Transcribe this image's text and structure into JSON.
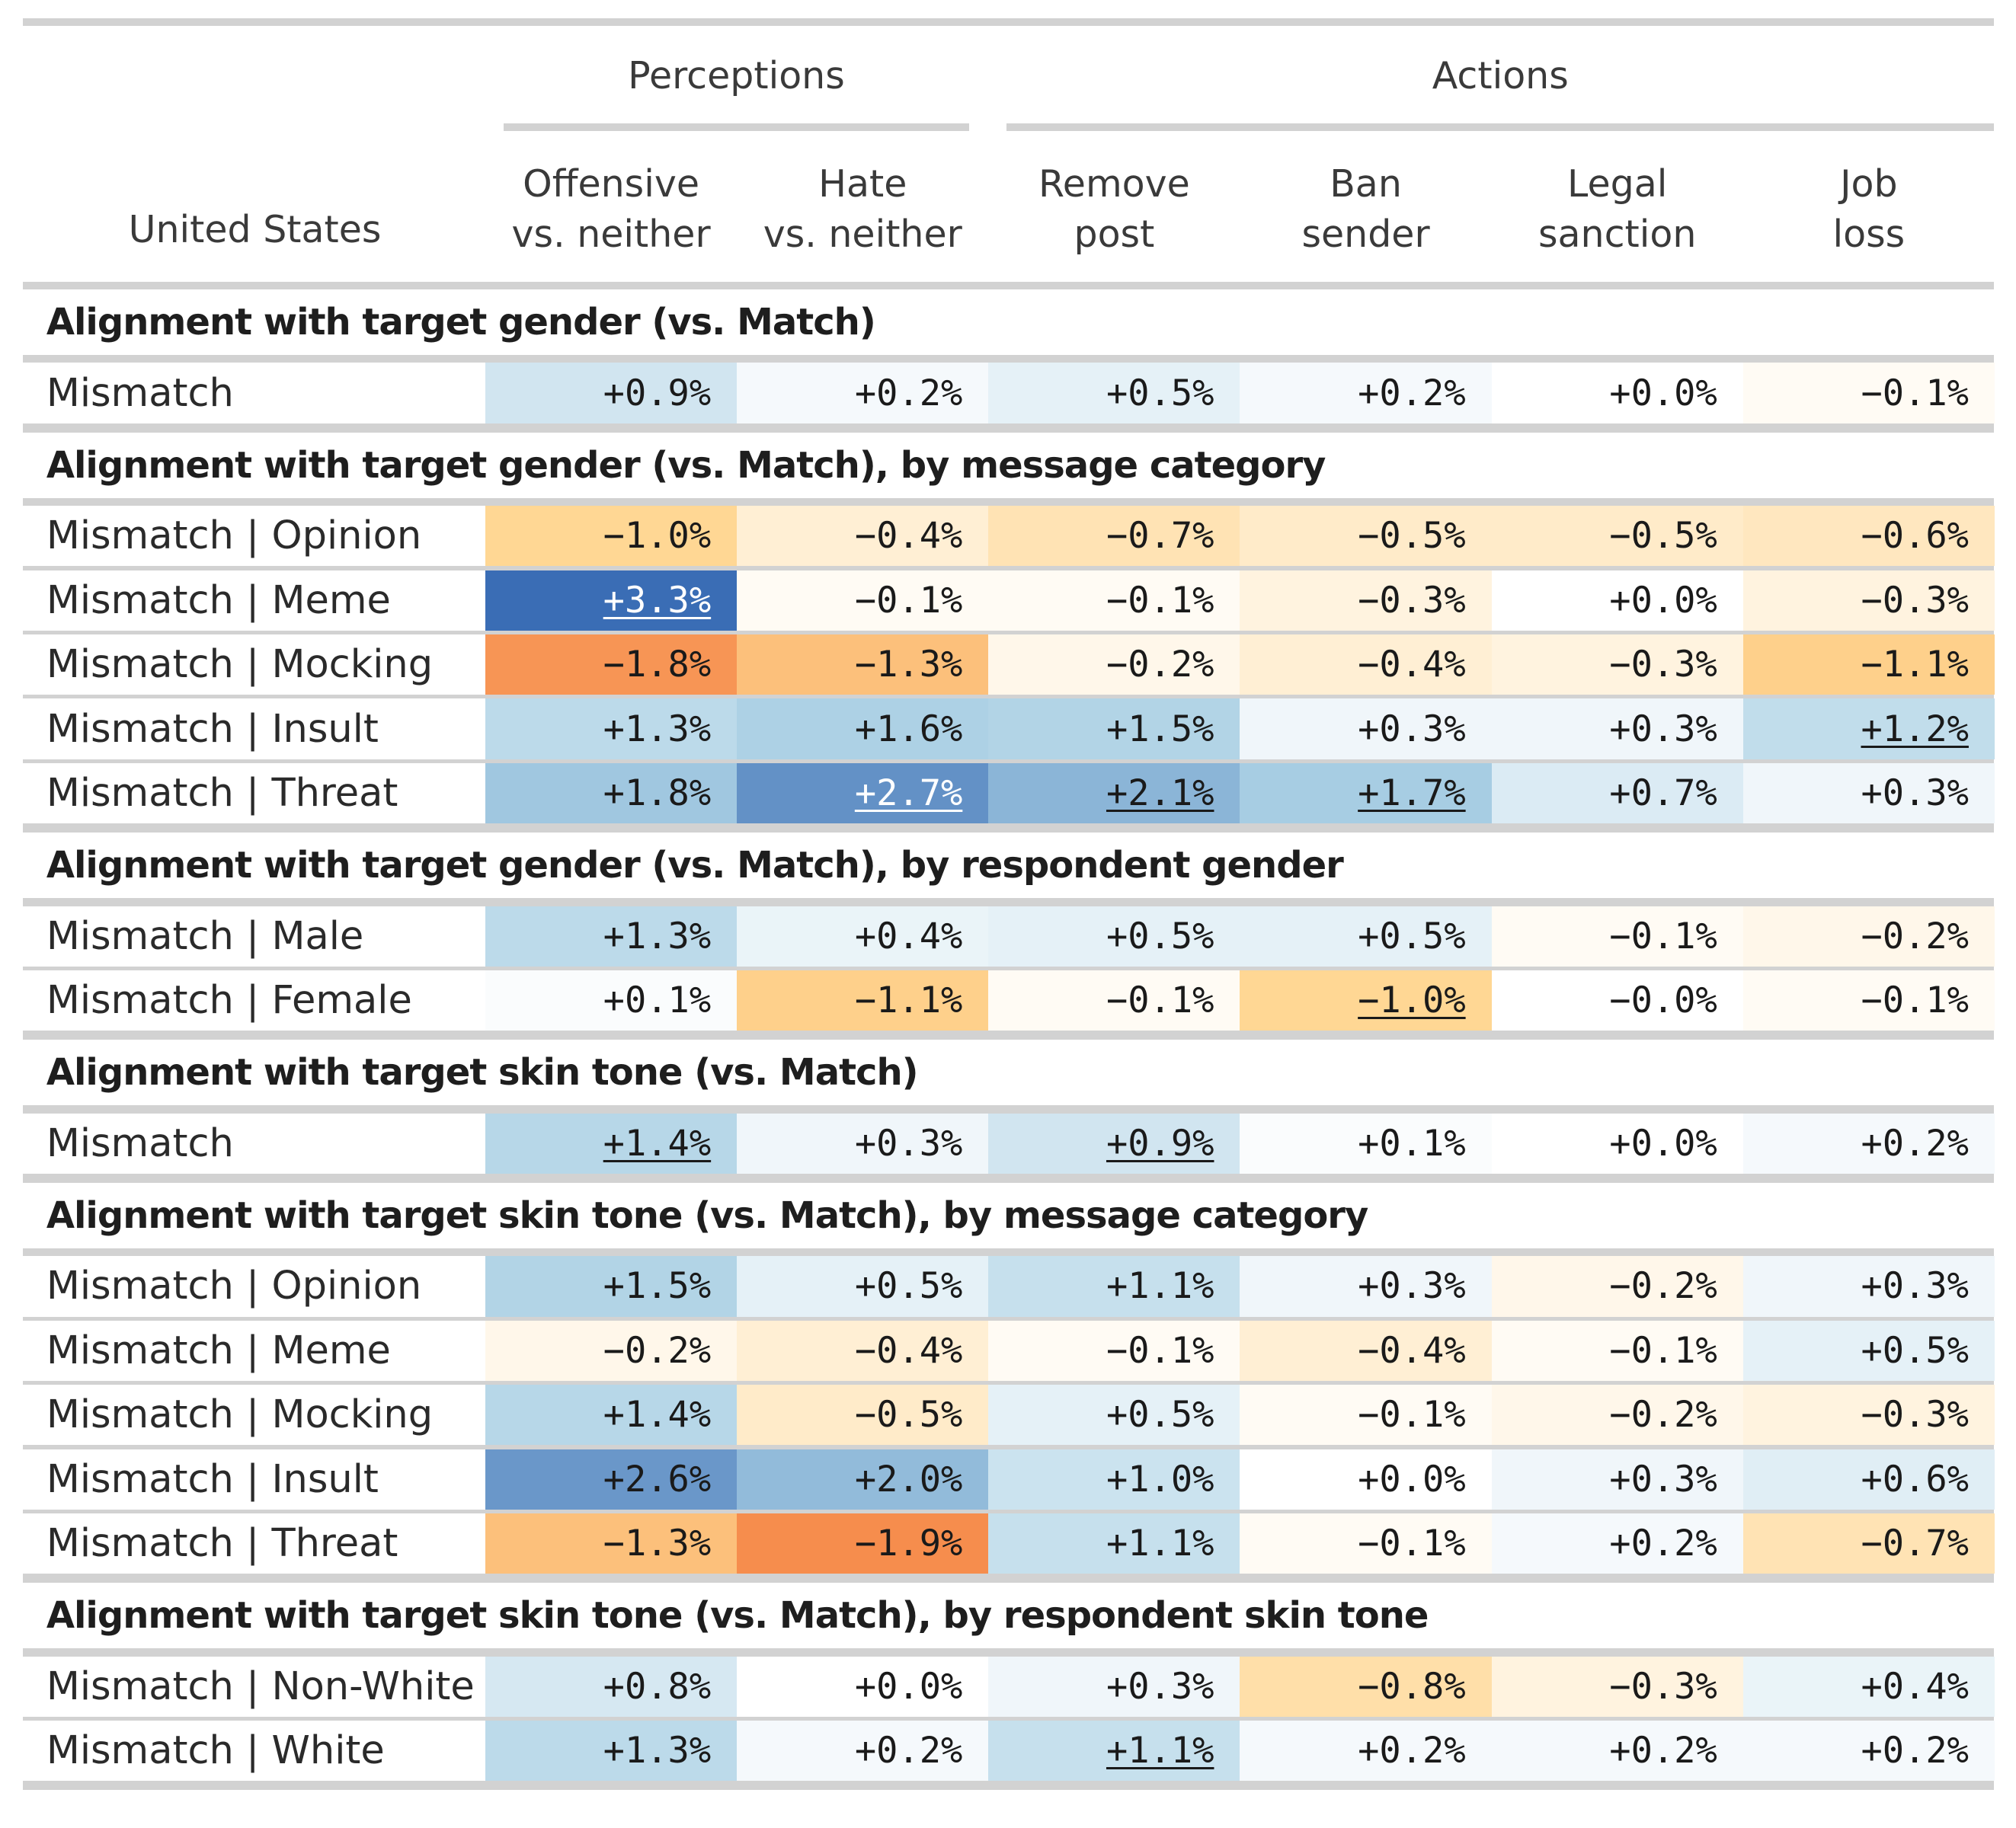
{
  "chart_data": {
    "type": "table",
    "title": "",
    "stub_header": "United States",
    "spanners": [
      {
        "label": "Perceptions",
        "columns": [
          0,
          1
        ]
      },
      {
        "label": "Actions",
        "columns": [
          2,
          3,
          4,
          5
        ]
      }
    ],
    "columns": [
      "Offensive\nvs. neither",
      "Hate\nvs. neither",
      "Remove\npost",
      "Ban\nsender",
      "Legal\nsanction",
      "Job\nloss"
    ],
    "groups": [
      {
        "title": "Alignment with target gender (vs. Match)",
        "rows": [
          {
            "label": "Mismatch",
            "values": [
              0.9,
              0.2,
              0.5,
              0.2,
              0.0,
              -0.1
            ],
            "text": [
              "+0.9%",
              "+0.2%",
              "+0.5%",
              "+0.2%",
              "+0.0%",
              "−0.1%"
            ],
            "underlined": [
              false,
              false,
              false,
              false,
              false,
              false
            ]
          }
        ]
      },
      {
        "title": "Alignment with target gender (vs. Match), by message category",
        "rows": [
          {
            "label": "Mismatch | Opinion",
            "values": [
              -1.0,
              -0.4,
              -0.7,
              -0.5,
              -0.5,
              -0.6
            ],
            "text": [
              "−1.0%",
              "−0.4%",
              "−0.7%",
              "−0.5%",
              "−0.5%",
              "−0.6%"
            ],
            "underlined": [
              false,
              false,
              false,
              false,
              false,
              false
            ]
          },
          {
            "label": "Mismatch | Meme",
            "values": [
              3.3,
              -0.1,
              -0.1,
              -0.3,
              0.0,
              -0.3
            ],
            "text": [
              "+3.3%",
              "−0.1%",
              "−0.1%",
              "−0.3%",
              "+0.0%",
              "−0.3%"
            ],
            "underlined": [
              true,
              false,
              false,
              false,
              false,
              false
            ]
          },
          {
            "label": "Mismatch | Mocking",
            "values": [
              -1.8,
              -1.3,
              -0.2,
              -0.4,
              -0.3,
              -1.1
            ],
            "text": [
              "−1.8%",
              "−1.3%",
              "−0.2%",
              "−0.4%",
              "−0.3%",
              "−1.1%"
            ],
            "underlined": [
              false,
              false,
              false,
              false,
              false,
              false
            ]
          },
          {
            "label": "Mismatch | Insult",
            "values": [
              1.3,
              1.6,
              1.5,
              0.3,
              0.3,
              1.2
            ],
            "text": [
              "+1.3%",
              "+1.6%",
              "+1.5%",
              "+0.3%",
              "+0.3%",
              "+1.2%"
            ],
            "underlined": [
              false,
              false,
              false,
              false,
              false,
              true
            ]
          },
          {
            "label": "Mismatch | Threat",
            "values": [
              1.8,
              2.7,
              2.1,
              1.7,
              0.7,
              0.3
            ],
            "text": [
              "+1.8%",
              "+2.7%",
              "+2.1%",
              "+1.7%",
              "+0.7%",
              "+0.3%"
            ],
            "underlined": [
              false,
              true,
              true,
              true,
              false,
              false
            ]
          }
        ]
      },
      {
        "title": "Alignment with target gender (vs. Match), by respondent gender",
        "rows": [
          {
            "label": "Mismatch | Male",
            "values": [
              1.3,
              0.4,
              0.5,
              0.5,
              -0.1,
              -0.2
            ],
            "text": [
              "+1.3%",
              "+0.4%",
              "+0.5%",
              "+0.5%",
              "−0.1%",
              "−0.2%"
            ],
            "underlined": [
              false,
              false,
              false,
              false,
              false,
              false
            ]
          },
          {
            "label": "Mismatch | Female",
            "values": [
              0.1,
              -1.1,
              -0.1,
              -1.0,
              -0.0,
              -0.1
            ],
            "text": [
              "+0.1%",
              "−1.1%",
              "−0.1%",
              "−1.0%",
              "−0.0%",
              "−0.1%"
            ],
            "underlined": [
              false,
              false,
              false,
              true,
              false,
              false
            ]
          }
        ]
      },
      {
        "title": "Alignment with target skin tone (vs. Match)",
        "rows": [
          {
            "label": "Mismatch",
            "values": [
              1.4,
              0.3,
              0.9,
              0.1,
              0.0,
              0.2
            ],
            "text": [
              "+1.4%",
              "+0.3%",
              "+0.9%",
              "+0.1%",
              "+0.0%",
              "+0.2%"
            ],
            "underlined": [
              true,
              false,
              true,
              false,
              false,
              false
            ]
          }
        ]
      },
      {
        "title": "Alignment with target skin tone (vs. Match), by message category",
        "rows": [
          {
            "label": "Mismatch | Opinion",
            "values": [
              1.5,
              0.5,
              1.1,
              0.3,
              -0.2,
              0.3
            ],
            "text": [
              "+1.5%",
              "+0.5%",
              "+1.1%",
              "+0.3%",
              "−0.2%",
              "+0.3%"
            ],
            "underlined": [
              false,
              false,
              false,
              false,
              false,
              false
            ]
          },
          {
            "label": "Mismatch | Meme",
            "values": [
              -0.2,
              -0.4,
              -0.1,
              -0.4,
              -0.1,
              0.5
            ],
            "text": [
              "−0.2%",
              "−0.4%",
              "−0.1%",
              "−0.4%",
              "−0.1%",
              "+0.5%"
            ],
            "underlined": [
              false,
              false,
              false,
              false,
              false,
              false
            ]
          },
          {
            "label": "Mismatch | Mocking",
            "values": [
              1.4,
              -0.5,
              0.5,
              -0.1,
              -0.2,
              -0.3
            ],
            "text": [
              "+1.4%",
              "−0.5%",
              "+0.5%",
              "−0.1%",
              "−0.2%",
              "−0.3%"
            ],
            "underlined": [
              false,
              false,
              false,
              false,
              false,
              false
            ]
          },
          {
            "label": "Mismatch | Insult",
            "values": [
              2.6,
              2.0,
              1.0,
              0.0,
              0.3,
              0.6
            ],
            "text": [
              "+2.6%",
              "+2.0%",
              "+1.0%",
              "+0.0%",
              "+0.3%",
              "+0.6%"
            ],
            "underlined": [
              false,
              false,
              false,
              false,
              false,
              false
            ]
          },
          {
            "label": "Mismatch | Threat",
            "values": [
              -1.3,
              -1.9,
              1.1,
              -0.1,
              0.2,
              -0.7
            ],
            "text": [
              "−1.3%",
              "−1.9%",
              "+1.1%",
              "−0.1%",
              "+0.2%",
              "−0.7%"
            ],
            "underlined": [
              false,
              false,
              false,
              false,
              false,
              false
            ]
          }
        ]
      },
      {
        "title": "Alignment with target skin tone (vs. Match), by respondent skin tone",
        "rows": [
          {
            "label": "Mismatch | Non-White",
            "values": [
              0.8,
              0.0,
              0.3,
              -0.8,
              -0.3,
              0.4
            ],
            "text": [
              "+0.8%",
              "+0.0%",
              "+0.3%",
              "−0.8%",
              "−0.3%",
              "+0.4%"
            ],
            "underlined": [
              false,
              false,
              false,
              false,
              false,
              false
            ]
          },
          {
            "label": "Mismatch | White",
            "values": [
              1.3,
              0.2,
              1.1,
              0.2,
              0.2,
              0.2
            ],
            "text": [
              "+1.3%",
              "+0.2%",
              "+1.1%",
              "+0.2%",
              "+0.2%",
              "+0.2%"
            ],
            "underlined": [
              false,
              false,
              true,
              false,
              false,
              false
            ]
          }
        ]
      }
    ],
    "color_scale": {
      "type": "diverging",
      "negative_color": "#f68d4d",
      "midpoint_color": "#ffffff",
      "positive_color": "#3a6db5",
      "negative_max": 1.9,
      "positive_max": 3.3
    }
  }
}
